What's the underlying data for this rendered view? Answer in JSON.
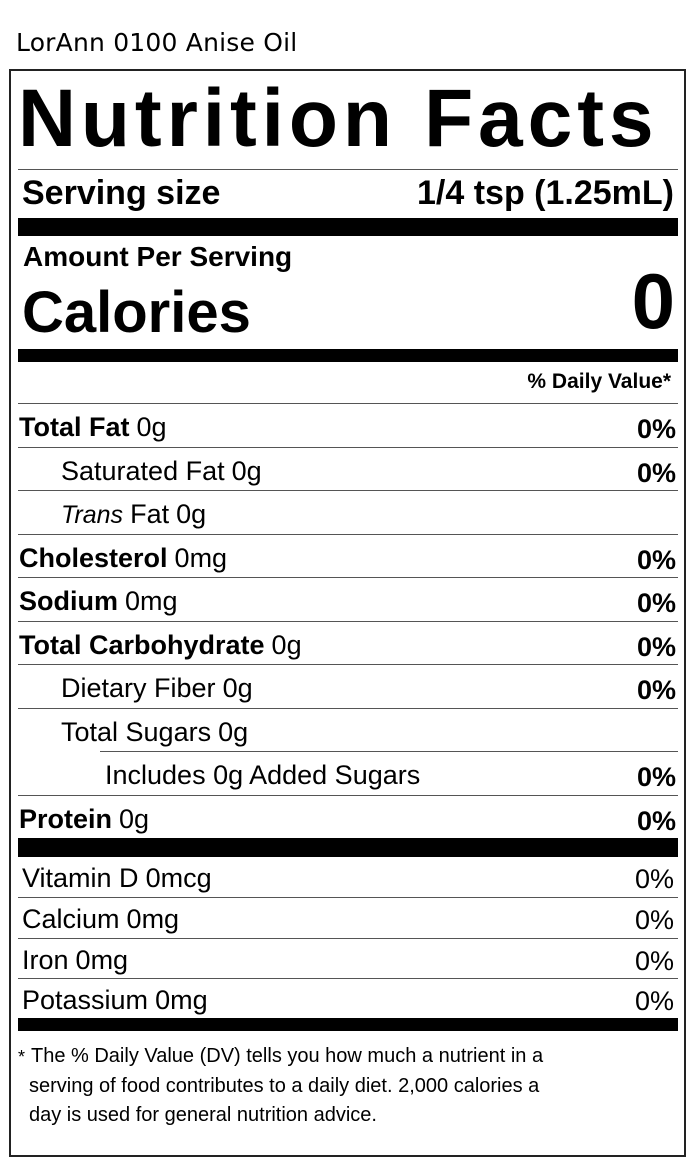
{
  "product_title": "LorAnn 0100 Anise Oil",
  "label": {
    "title": "Nutrition Facts",
    "serving_size": {
      "label": "Serving size",
      "value": "1/4 tsp (1.25mL)"
    },
    "amount_per_serving": "Amount Per Serving",
    "calories": {
      "label": "Calories",
      "value": "0"
    },
    "daily_value_header": "% Daily Value*",
    "nutrients": [
      {
        "name": "Total Fat",
        "amount": "0g",
        "dv": "0%",
        "level": 0
      },
      {
        "name": "Saturated Fat",
        "amount": "0g",
        "dv": "0%",
        "level": 1
      },
      {
        "name_italic": "Trans",
        "name": "Fat",
        "amount": "0g",
        "level": 1
      },
      {
        "name": "Cholesterol",
        "amount": "0mg",
        "dv": "0%",
        "level": 0
      },
      {
        "name": "Sodium",
        "amount": "0mg",
        "dv": "0%",
        "level": 0
      },
      {
        "name": "Total Carbohydrate",
        "amount": "0g",
        "dv": "0%",
        "level": 0
      },
      {
        "name": "Dietary Fiber",
        "amount": "0g",
        "dv": "0%",
        "level": 1
      },
      {
        "name": "Total Sugars",
        "amount": "0g",
        "level": 1
      },
      {
        "name": "Includes 0g Added Sugars",
        "dv": "0%",
        "level": 2
      },
      {
        "name": "Protein",
        "amount": "0g",
        "dv": "0%",
        "level": 0
      }
    ],
    "vitamins": [
      {
        "name": "Vitamin D",
        "amount": "0mcg",
        "dv": "0%"
      },
      {
        "name": "Calcium",
        "amount": "0mg",
        "dv": "0%"
      },
      {
        "name": "Iron",
        "amount": "0mg",
        "dv": "0%"
      },
      {
        "name": "Potassium",
        "amount": "0mg",
        "dv": "0%"
      }
    ],
    "footnote": {
      "marker": "*",
      "lines": [
        "The % Daily Value (DV) tells you how much a nutrient in a",
        "serving of food contributes to a daily diet. 2,000 calories a",
        "day is used for general nutrition advice."
      ]
    }
  }
}
